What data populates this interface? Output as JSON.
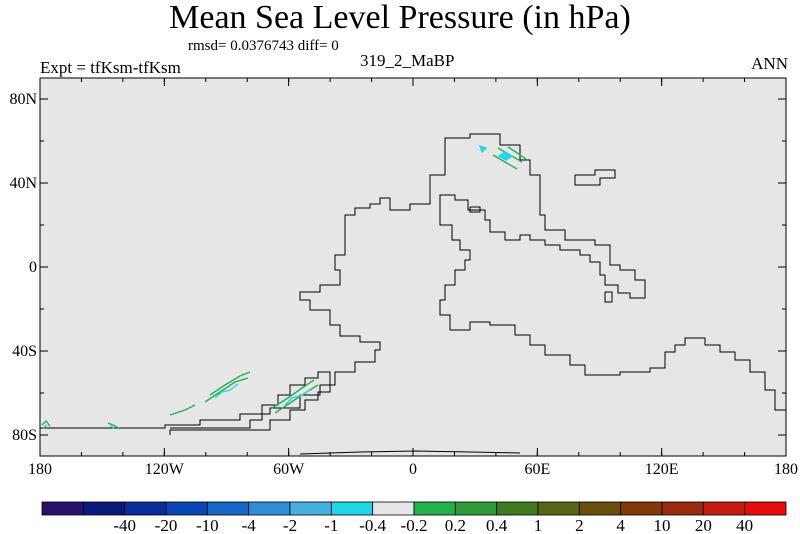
{
  "header": {
    "title": "Mean Sea Level Pressure (in hPa)",
    "stats": "rmsd= 0.0376743 diff= 0",
    "left_label": "Expt = tfKsm-tfKsm",
    "center_label": "319_2_MaBP",
    "right_label": "ANN"
  },
  "map": {
    "background_color": "#e6e6e6",
    "coastline_color": "#000000",
    "lon_ticks": [
      "180",
      "120W",
      "60W",
      "0",
      "60E",
      "120E",
      "180"
    ],
    "lat_ticks": [
      "80N",
      "40N",
      "0",
      "40S",
      "80S"
    ]
  },
  "colorbar": {
    "colors": [
      "#2a0f6b",
      "#0a1a7a",
      "#0b2d9a",
      "#0a47b5",
      "#1466c8",
      "#2f8ed6",
      "#46b0e0",
      "#22d6e6",
      "#e6e6e6",
      "#22b14c",
      "#2f9a38",
      "#3f7a1f",
      "#5a6415",
      "#6a4e0c",
      "#7f3a08",
      "#9a2a0c",
      "#c41a10",
      "#e80c0c"
    ],
    "labels": [
      "-40",
      "-20",
      "-10",
      "-4",
      "-2",
      "-1",
      "-0.4",
      "-0.2",
      "0.2",
      "0.4",
      "1",
      "2",
      "4",
      "10",
      "20",
      "40"
    ]
  }
}
